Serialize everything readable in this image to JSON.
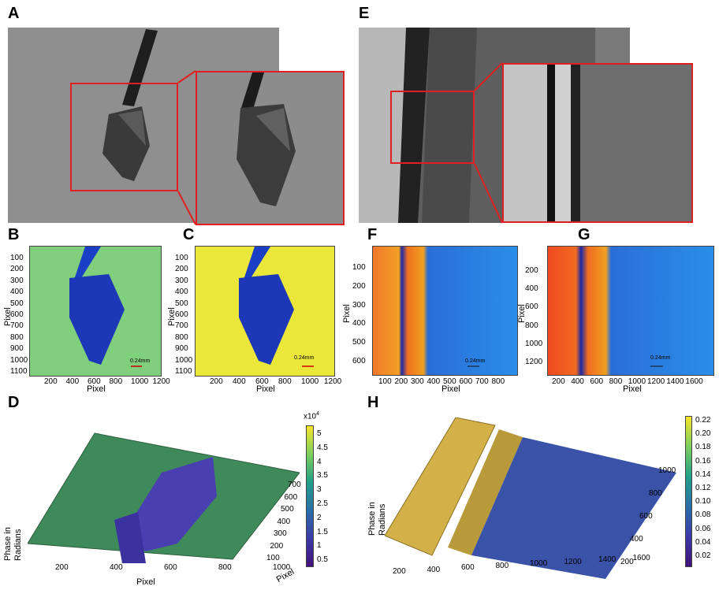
{
  "panels": {
    "A": "A",
    "B": "B",
    "C": "C",
    "D": "D",
    "E": "E",
    "F": "F",
    "G": "G",
    "H": "H"
  },
  "axis": {
    "pixel": "Pixel",
    "phase": "Phase in\nRadians"
  },
  "scale_bar": "0.24mm",
  "B": {
    "y_ticks": [
      "100",
      "200",
      "300",
      "400",
      "500",
      "600",
      "700",
      "800",
      "900",
      "1000",
      "1100"
    ],
    "x_ticks": [
      "200",
      "400",
      "600",
      "800",
      "1000",
      "1200"
    ]
  },
  "C": {
    "y_ticks": [
      "100",
      "200",
      "300",
      "400",
      "500",
      "600",
      "700",
      "800",
      "900",
      "1000",
      "1100"
    ],
    "x_ticks": [
      "200",
      "400",
      "600",
      "800",
      "1000",
      "1200"
    ]
  },
  "F": {
    "y_ticks": [
      "100",
      "200",
      "300",
      "400",
      "500",
      "600"
    ],
    "x_ticks": [
      "100",
      "200",
      "300",
      "400",
      "500",
      "600",
      "700",
      "800"
    ]
  },
  "G": {
    "y_ticks": [
      "200",
      "400",
      "600",
      "800",
      "1000",
      "1200"
    ],
    "x_ticks": [
      "200",
      "400",
      "600",
      "800",
      "1000",
      "1200",
      "1400",
      "1600"
    ]
  },
  "D": {
    "x_ticks": [
      "200",
      "400",
      "600",
      "800",
      "1000"
    ],
    "y_ticks": [
      "100",
      "200",
      "300",
      "400",
      "500",
      "600",
      "700"
    ],
    "colorbar_ticks": [
      "5",
      "4.5",
      "4",
      "3.5",
      "3",
      "2.5",
      "2",
      "1.5",
      "1",
      "0.5"
    ],
    "multiplier": "x10",
    "exponent": "4"
  },
  "H": {
    "x_ticks": [
      "200",
      "400",
      "600",
      "800",
      "1000",
      "1200",
      "1400",
      "1600"
    ],
    "y_ticks": [
      "200",
      "400",
      "600",
      "800",
      "1000"
    ],
    "colorbar_ticks": [
      "0.22",
      "0.20",
      "0.18",
      "0.16",
      "0.14",
      "0.12",
      "0.10",
      "0.08",
      "0.06",
      "0.04",
      "0.02"
    ]
  },
  "colors": {
    "frame_red": "#e02020",
    "yellow": "#f5e92a",
    "green": "#7fcf7a",
    "blue": "#1e3fbf",
    "orange": "#f07a20"
  }
}
